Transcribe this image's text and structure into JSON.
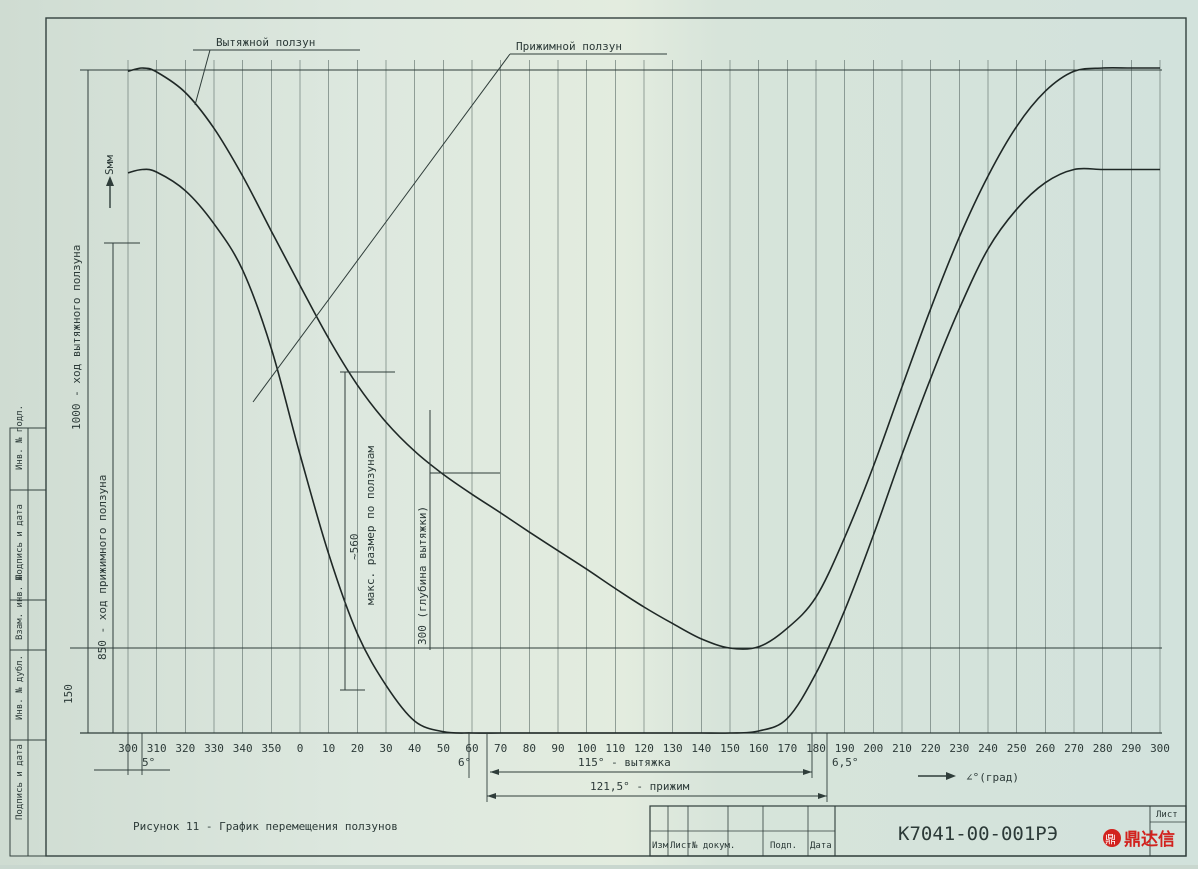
{
  "chart_data": {
    "type": "line",
    "x_ticks": [
      "300",
      "310",
      "320",
      "330",
      "340",
      "350",
      "0",
      "10",
      "20",
      "30",
      "40",
      "50",
      "60",
      "70",
      "80",
      "90",
      "100",
      "110",
      "120",
      "130",
      "140",
      "150",
      "160",
      "170",
      "180",
      "190",
      "200",
      "210",
      "220",
      "230",
      "240",
      "250",
      "260",
      "270",
      "280",
      "290",
      "300"
    ],
    "y_range": [
      0,
      1000
    ],
    "series": [
      {
        "name": "Вытяжной ползун",
        "x_angle_unwrapped": [
          300,
          305,
          310,
          320,
          330,
          340,
          350,
          360,
          370,
          380,
          390,
          400,
          410,
          420,
          430,
          440,
          450,
          460,
          470,
          480,
          490,
          500,
          510,
          520,
          530,
          540,
          550,
          560,
          570,
          580,
          590,
          600,
          610,
          620,
          630,
          640,
          650,
          660
        ],
        "y": [
          998,
          1003,
          997,
          966,
          912,
          840,
          757,
          675,
          595,
          525,
          469,
          425,
          390,
          360,
          332,
          303,
          275,
          247,
          218,
          190,
          165,
          142,
          128,
          130,
          158,
          205,
          295,
          402,
          522,
          640,
          748,
          840,
          915,
          968,
          998,
          1003,
          1003,
          1003
        ]
      },
      {
        "name": "Прижимной ползун",
        "x_angle_unwrapped": [
          300,
          305,
          310,
          320,
          330,
          340,
          350,
          360,
          370,
          380,
          390,
          400,
          410,
          420,
          430,
          440,
          450,
          460,
          470,
          480,
          490,
          500,
          510,
          520,
          530,
          540,
          550,
          560,
          570,
          580,
          590,
          600,
          610,
          620,
          630,
          640,
          650,
          660
        ],
        "y": [
          845,
          850,
          846,
          818,
          768,
          698,
          580,
          420,
          270,
          150,
          72,
          18,
          2,
          0,
          0,
          0,
          0,
          0,
          0,
          0,
          0,
          0,
          0,
          3,
          22,
          90,
          185,
          298,
          420,
          535,
          640,
          730,
          790,
          830,
          850,
          850,
          850,
          850
        ]
      }
    ],
    "x_axis_arrow_label": "∠°(град)",
    "y_axis_arrow_label": "Sмм",
    "y_label_outer": "1000 - ход вытяжного ползуна",
    "y_label_inner": "850 - ход прижимного ползуна",
    "level_150_label": "150",
    "annotation_560": "~560",
    "annotation_560_text": "макс. размер по ползунам",
    "annotation_300": "300 (глубина вытяжки)",
    "dim_5": "5°",
    "dim_6": "6°",
    "dim_6_5": "6,5°",
    "dim_draw": "115° - вытяжка",
    "dim_press": "121,5° - прижим",
    "callout_drawing": "Вытяжной ползун",
    "callout_pressing": "Прижимной ползун",
    "caption": "Рисунок 11 - График перемещения ползунов",
    "doc_number": "К7041-00-001РЭ",
    "title_block_cells": [
      "Изм",
      "Лист",
      "№ докум.",
      "Подп.",
      "Дата"
    ],
    "sheet_label": "Лист",
    "left_strip_labels": [
      "Инв. № подл.",
      "Подпись и дата",
      "Взам. инв. №",
      "Инв. № дубл.",
      "Подпись и дата"
    ],
    "watermark": "鼎达信"
  }
}
